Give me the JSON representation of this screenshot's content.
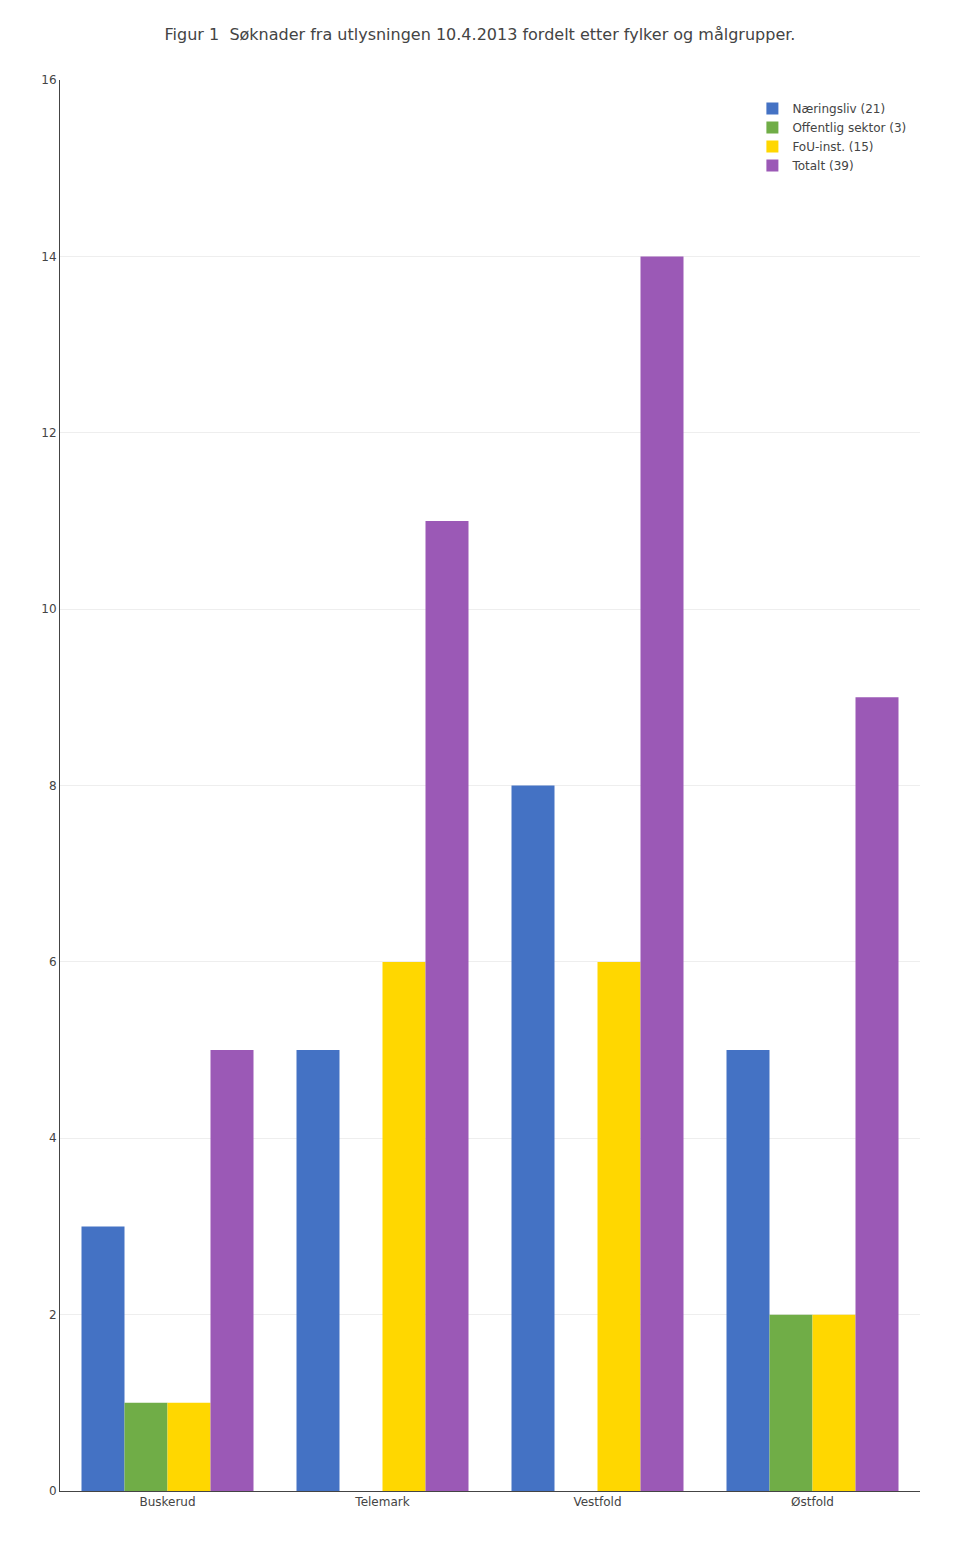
{
  "chart_data": {
    "type": "bar",
    "title": "Figur 1  Søknader fra utlysningen 10.4.2013 fordelt etter fylker og målgrupper.",
    "categories": [
      "Buskerud",
      "Telemark",
      "Vestfold",
      "Østfold"
    ],
    "series": [
      {
        "name": "Næringsliv (21)",
        "color": "#4472C4",
        "values": [
          3,
          5,
          8,
          5
        ]
      },
      {
        "name": "Offentlig sektor (3)",
        "color": "#70AD47",
        "values": [
          1,
          0,
          0,
          2
        ]
      },
      {
        "name": "FoU-inst. (15)",
        "color": "#FFD700",
        "values": [
          1,
          6,
          6,
          2
        ]
      },
      {
        "name": "Totalt (39)",
        "color": "#9B59B6",
        "values": [
          5,
          11,
          14,
          9
        ]
      }
    ],
    "ylim": [
      0,
      16
    ],
    "yticks": [
      0,
      2,
      4,
      6,
      8,
      10,
      12,
      14,
      16
    ],
    "grid": true,
    "legend": "upper right"
  }
}
